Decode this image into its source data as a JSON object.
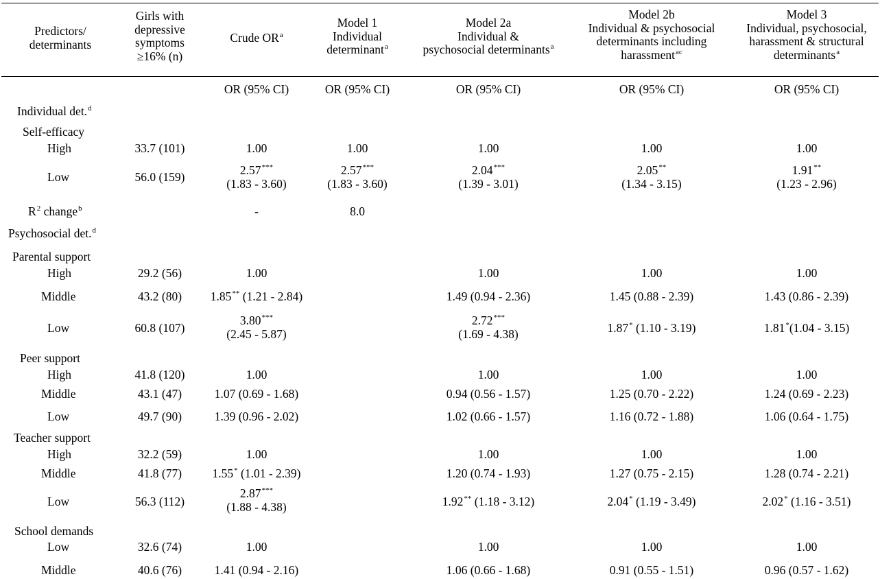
{
  "header": {
    "col1": [
      "Predictors/",
      "determinants"
    ],
    "col2": [
      "Girls with",
      "depressive",
      "symptoms",
      "≥16% (n)"
    ],
    "col3": {
      "text": "Crude OR",
      "sup": "a"
    },
    "col4": {
      "lines": [
        "Model 1",
        "Individual",
        "determinant"
      ],
      "sup": "a"
    },
    "col5": {
      "lines": [
        "Model 2a",
        "Individual &",
        "psychosocial determinants"
      ],
      "sup": "a"
    },
    "col6": {
      "lines": [
        "Model 2b",
        "Individual & psychosocial",
        "determinants including",
        "harassment"
      ],
      "sup": "ac"
    },
    "col7": {
      "lines": [
        "Model 3",
        "Individual, psychosocial,",
        "harassment & structural",
        "determinants"
      ],
      "sup": "a"
    },
    "or_label": "OR (95% CI)"
  },
  "sections": {
    "individual": {
      "text": "Individual det.",
      "sup": "d"
    },
    "self_efficacy": "Self-efficacy",
    "r2": {
      "text": "R",
      "sup2": "2",
      "rest": " change",
      "sup": "b",
      "crude": "-",
      "m1": "8.0"
    },
    "psychosocial": {
      "text": "Psychosocial det.",
      "sup": "d"
    },
    "parental": "Parental support",
    "peer": "Peer support",
    "teacher": "Teacher support",
    "school": "School demands"
  },
  "rows": {
    "se_high": {
      "label": "High",
      "n": "33.7 (101)",
      "crude": "1.00",
      "m1": "1.00",
      "m2a": "1.00",
      "m2b": "1.00",
      "m3": "1.00"
    },
    "se_low": {
      "label": "Low",
      "n": "56.0 (159)",
      "crude": {
        "v": "2.57",
        "s": "***",
        "ci": "(1.83 - 3.60)"
      },
      "m1": {
        "v": "2.57",
        "s": "***",
        "ci": "(1.83 - 3.60)"
      },
      "m2a": {
        "v": "2.04",
        "s": "***",
        "ci": "(1.39 - 3.01)"
      },
      "m2b": {
        "v": "2.05",
        "s": "**",
        "ci": "(1.34 - 3.15)"
      },
      "m3": {
        "v": "1.91",
        "s": "**",
        "ci": "(1.23 - 2.96)"
      }
    },
    "ps_high": {
      "label": "High",
      "n": "29.2 (56)",
      "crude": "1.00",
      "m2a": "1.00",
      "m2b": "1.00",
      "m3": "1.00"
    },
    "ps_mid": {
      "label": "Middle",
      "n": "43.2 (80)",
      "crude": {
        "v": "1.85",
        "s": "**",
        "ci": " (1.21 - 2.84)"
      },
      "m2a": "1.49 (0.94 - 2.36)",
      "m2b": "1.45 (0.88 - 2.39)",
      "m3": "1.43 (0.86 - 2.39)"
    },
    "ps_low": {
      "label": "Low",
      "n": "60.8 (107)",
      "crude": {
        "v": "3.80",
        "s": "***",
        "ci": "(2.45 - 5.87)"
      },
      "m2a": {
        "v": "2.72",
        "s": "***",
        "ci": "(1.69 - 4.38)"
      },
      "m2b": {
        "v": "1.87",
        "s": "*",
        "ci": " (1.10 - 3.19)"
      },
      "m3": {
        "v": "1.81",
        "s": "*",
        "ci": "(1.04 - 3.15)"
      }
    },
    "peer_high": {
      "label": "High",
      "n": "41.8 (120)",
      "crude": "1.00",
      "m2a": "1.00",
      "m2b": "1.00",
      "m3": "1.00"
    },
    "peer_mid": {
      "label": "Middle",
      "n": "43.1 (47)",
      "crude": "1.07 (0.69 - 1.68)",
      "m2a": "0.94 (0.56 - 1.57)",
      "m2b": "1.25 (0.70 - 2.22)",
      "m3": "1.24 (0.69 - 2.23)"
    },
    "peer_low": {
      "label": "Low",
      "n": "49.7 (90)",
      "crude": "1.39 (0.96 - 2.02)",
      "m2a": "1.02 (0.66 - 1.57)",
      "m2b": "1.16 (0.72 - 1.88)",
      "m3": "1.06 (0.64 - 1.75)"
    },
    "ts_high": {
      "label": "High",
      "n": "32.2 (59)",
      "crude": "1.00",
      "m2a": "1.00",
      "m2b": "1.00",
      "m3": "1.00"
    },
    "ts_mid": {
      "label": "Middle",
      "n": "41.8 (77)",
      "crude": {
        "v": "1.55",
        "s": "*",
        "ci": " (1.01 - 2.39)"
      },
      "m2a": "1.20 (0.74 - 1.93)",
      "m2b": "1.27 (0.75 - 2.15)",
      "m3": "1.28 (0.74 - 2.21)"
    },
    "ts_low": {
      "label": "Low",
      "n": "56.3 (112)",
      "crude": {
        "v": "2.87",
        "s": "***",
        "ci": "(1.88 - 4.38)"
      },
      "m2a": {
        "v": "1.92",
        "s": "**",
        "ci": " (1.18 - 3.12)"
      },
      "m2b": {
        "v": "2.04",
        "s": "*",
        "ci": " (1.19 - 3.49)"
      },
      "m3": {
        "v": "2.02",
        "s": "*",
        "ci": " (1.16 - 3.51)"
      }
    },
    "sd_low": {
      "label": "Low",
      "n": "32.6 (74)",
      "crude": "1.00",
      "m2a": "1.00",
      "m2b": "1.00",
      "m3": "1.00"
    },
    "sd_mid": {
      "label": "Middle",
      "n": "40.6 (76)",
      "crude": "1.41 (0.94 - 2.16)",
      "m2a": "1.06 (0.66 - 1.68)",
      "m2b": "0.91 (0.55 - 1.51)",
      "m3": "0.96 (0.57 - 1.62)"
    }
  }
}
